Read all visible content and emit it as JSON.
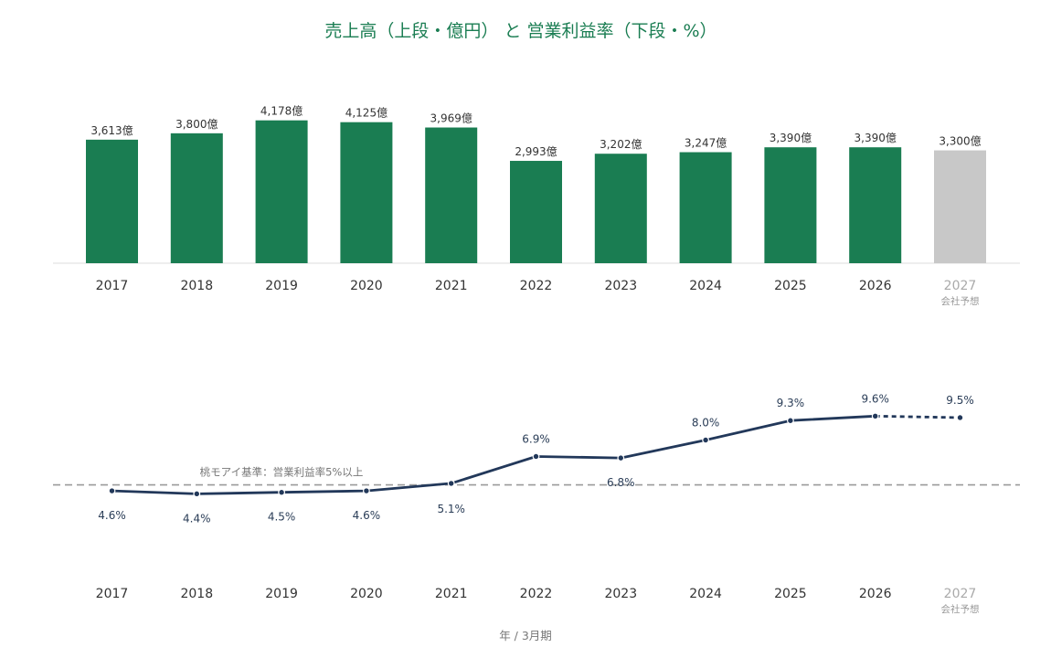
{
  "title": "売上高（上段・億円） と 営業利益率（下段・%）",
  "xlabel": "年 / 3月期",
  "forecast_label": "会社予想",
  "colors": {
    "bar": "#1a7d52",
    "bar_forecast": "#c8c8c8",
    "line": "#22385a",
    "threshold": "#9a9a9a",
    "title": "#1a7d52"
  },
  "chart_data": [
    {
      "type": "bar",
      "categories": [
        "2017",
        "2018",
        "2019",
        "2020",
        "2021",
        "2022",
        "2023",
        "2024",
        "2025",
        "2026",
        "2027"
      ],
      "values": [
        3613,
        3800,
        4178,
        4125,
        3969,
        2993,
        3202,
        3247,
        3390,
        3390,
        3300
      ],
      "data_labels": [
        "3,613億",
        "3,800億",
        "4,178億",
        "4,125億",
        "3,969億",
        "2,993億",
        "3,202億",
        "3,247億",
        "3,390億",
        "3,390億",
        "3,300億"
      ],
      "forecast_index": 10,
      "ylabel": "",
      "grid": false
    },
    {
      "type": "line",
      "categories": [
        "2017",
        "2018",
        "2019",
        "2020",
        "2021",
        "2022",
        "2023",
        "2024",
        "2025",
        "2026",
        "2027"
      ],
      "values": [
        4.6,
        4.4,
        4.5,
        4.6,
        5.1,
        6.9,
        6.8,
        8.0,
        9.3,
        9.6,
        9.5
      ],
      "data_labels": [
        "4.6%",
        "4.4%",
        "4.5%",
        "4.6%",
        "5.1%",
        "6.9%",
        "6.8%",
        "8.0%",
        "9.3%",
        "9.6%",
        "9.5%"
      ],
      "forecast_index": 10,
      "threshold": {
        "value": 5,
        "label": "桃モアイ基準：営業利益率5%以上"
      },
      "grid": false
    }
  ]
}
